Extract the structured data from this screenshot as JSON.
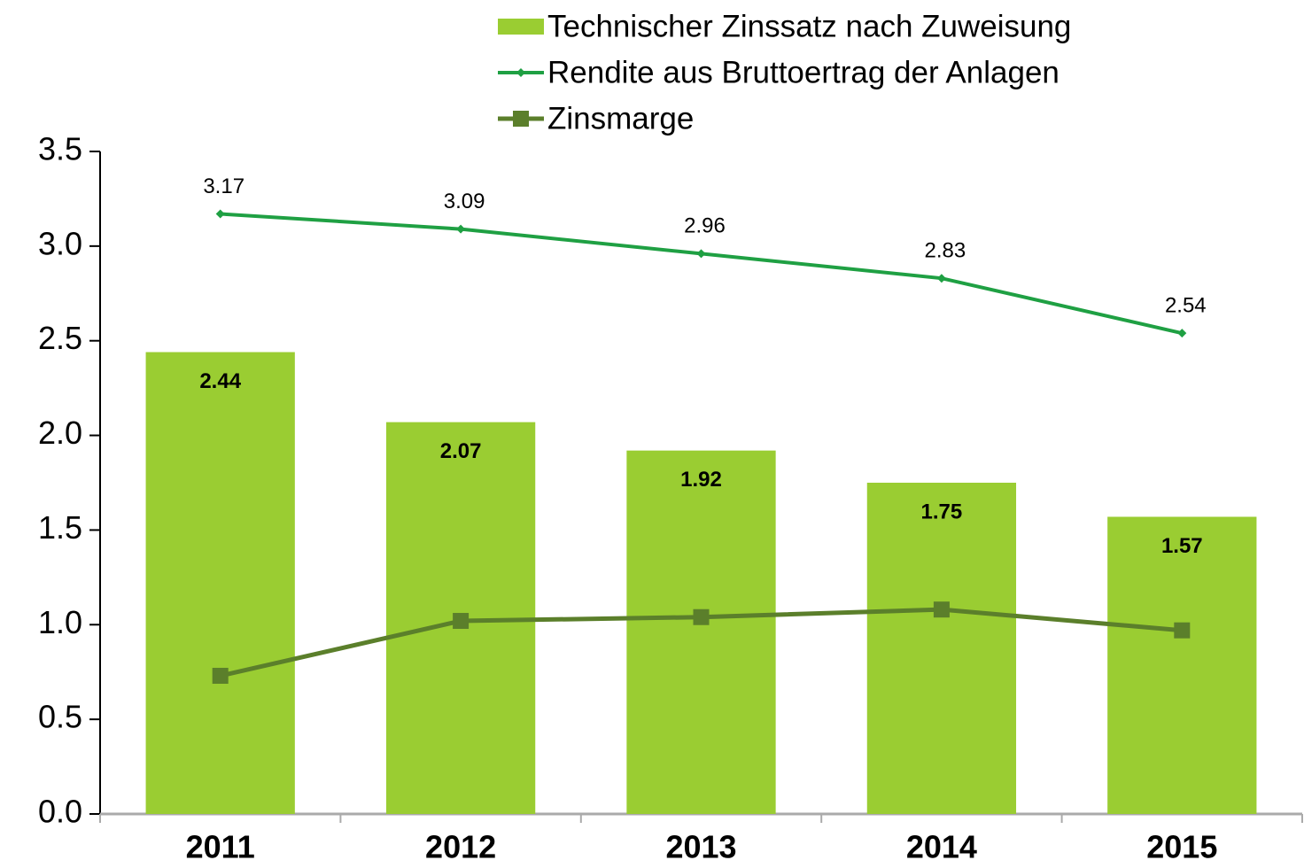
{
  "chart_data": {
    "type": "bar",
    "categories": [
      "2011",
      "2012",
      "2013",
      "2014",
      "2015"
    ],
    "series": [
      {
        "name": "Technischer Zinssatz nach Zuweisung",
        "type": "bar",
        "color": "#9acd32",
        "values": [
          2.44,
          2.07,
          1.92,
          1.75,
          1.57
        ]
      },
      {
        "name": "Rendite aus Bruttoertrag der Anlagen",
        "type": "line",
        "marker": "diamond",
        "color": "#1fa043",
        "values": [
          3.17,
          3.09,
          2.96,
          2.83,
          2.54
        ]
      },
      {
        "name": "Zinsmarge",
        "type": "line",
        "marker": "square",
        "color": "#5b7f2b",
        "values": [
          0.73,
          1.02,
          1.04,
          1.08,
          0.97
        ]
      }
    ],
    "ylim": [
      0,
      3.5
    ],
    "yticks": [
      {
        "value": 0,
        "label": "0.0"
      },
      0.5,
      {
        "value": 1,
        "label": "1.0"
      },
      1.5,
      {
        "value": 2,
        "label": "2.0"
      },
      2.5,
      {
        "value": 3,
        "label": "3.0"
      },
      3.5
    ],
    "grid": false,
    "legend": "top"
  }
}
